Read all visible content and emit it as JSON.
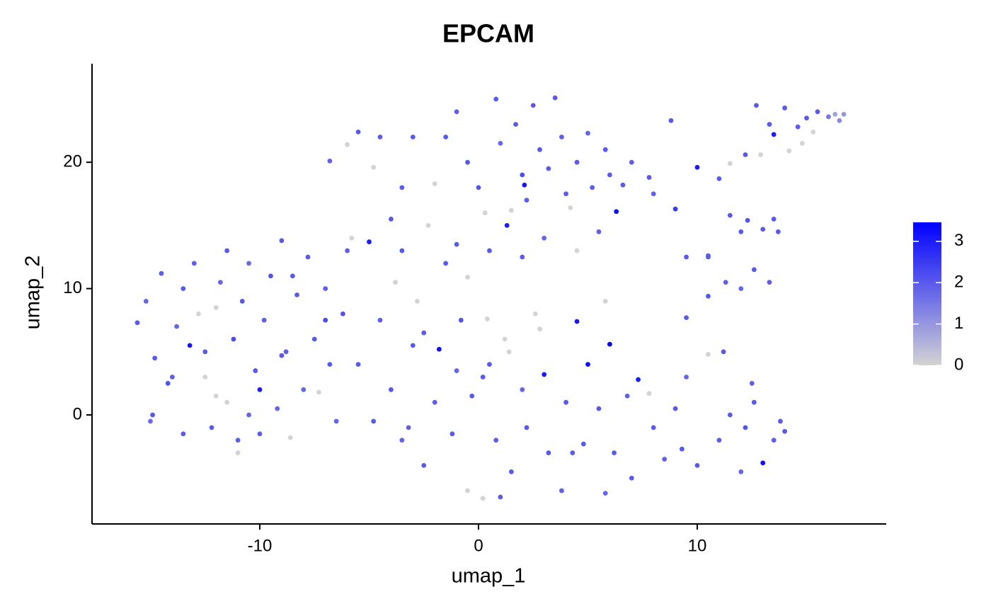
{
  "chart_data": {
    "type": "scatter",
    "title": "EPCAM",
    "xlabel": "umap_1",
    "ylabel": "umap_2",
    "xlim": [
      -17.67,
      18.64
    ],
    "ylim": [
      -8.63,
      27.8
    ],
    "xticks": [
      -10,
      0,
      10
    ],
    "yticks": [
      0,
      10,
      20
    ],
    "x": [
      -15.6,
      -15.2,
      -14.8,
      -14.5,
      -14.9,
      -15,
      -14.2,
      -13.8,
      -13.5,
      -13.2,
      -13,
      -12.8,
      -12.5,
      -12.2,
      -12,
      -11.8,
      -11.5,
      -11.2,
      -11,
      -10.8,
      -10.5,
      -10.2,
      -10,
      -9.8,
      -9.5,
      -9.2,
      -9,
      -8.8,
      -8.6,
      -8.3,
      -8,
      -7.8,
      -7.5,
      -7.3,
      -7,
      -6.8,
      -6.5,
      -6.2,
      -6,
      -11,
      -12,
      -13.5,
      -14,
      -10.5,
      -9,
      -8.5,
      -11.5,
      -12.5,
      -10,
      -7,
      -5.5,
      -5,
      -4.8,
      -4.5,
      -4,
      -3.8,
      -3.5,
      -3,
      -2.8,
      -2.5,
      -2,
      -1.8,
      -1.5,
      -1.2,
      -1,
      -0.8,
      -0.5,
      -0.3,
      0.2,
      0.5,
      0.8,
      1.2,
      1.5,
      2,
      2.2,
      2.6,
      3,
      3.2,
      3.8,
      4,
      4.5,
      4.8,
      5,
      5.5,
      5.8,
      6,
      6.2,
      6.8,
      7,
      7.3,
      7.8,
      8,
      8.5,
      9,
      9.5,
      10,
      10.5,
      11,
      11.5,
      12,
      12.2,
      12.6,
      13,
      13.5,
      13.8,
      14,
      12.5,
      11.2,
      -0.5,
      0.4,
      1.4,
      2.8,
      5.8,
      0.2,
      -2.5,
      -3.2,
      1,
      4.3,
      9.3,
      -1.5,
      -1,
      -0.5,
      0,
      0.3,
      0.8,
      1,
      1.3,
      1.7,
      2,
      2.2,
      2.5,
      2.8,
      3,
      3.2,
      3.5,
      3.8,
      4,
      4.2,
      4.5,
      5,
      5.2,
      5.5,
      5.8,
      6,
      6.3,
      6.6,
      7,
      -2,
      -2.3,
      -1,
      0.5,
      2,
      4.5,
      2.1,
      1.5,
      -6,
      -5.5,
      -4.8,
      -4.5,
      -3.5,
      -3,
      -6.8,
      -3.5,
      -4,
      -5.8,
      8.8,
      9,
      9.5,
      10,
      10.5,
      11,
      11.3,
      11.5,
      12,
      12,
      12.3,
      12.6,
      13,
      13.3,
      13.5,
      13.7,
      11.5,
      10.5,
      12.2,
      12.7,
      12.9,
      13.3,
      13.5,
      14,
      14.2,
      14.6,
      14.8,
      15,
      15.5,
      15.3,
      16,
      16.3,
      16.7,
      16.5,
      10.5,
      9.5,
      7.8,
      8
    ],
    "y": [
      7.3,
      9,
      4.5,
      11.2,
      0,
      -0.5,
      2.5,
      7,
      10,
      5.5,
      12,
      8,
      3,
      -1,
      1.5,
      10.5,
      13,
      6,
      -2,
      9,
      12,
      3.5,
      2,
      7.5,
      11,
      0.5,
      13.8,
      5,
      -1.8,
      9.5,
      2,
      12.5,
      6,
      1.8,
      10,
      4,
      -0.5,
      8,
      13,
      -3,
      8.5,
      -1.5,
      3,
      0,
      4.7,
      11,
      1,
      5,
      -1.5,
      7.5,
      4,
      13.7,
      -0.5,
      7.5,
      2,
      10.5,
      -2,
      5.5,
      9,
      -4,
      1,
      5.2,
      12,
      -1.5,
      3.5,
      7.5,
      -6,
      1.5,
      -6.6,
      4,
      -2,
      6,
      -4.5,
      2,
      -1,
      8,
      3.2,
      -3,
      -6,
      1,
      7.4,
      -2.3,
      4,
      0.5,
      -6.2,
      5.6,
      -3,
      1.5,
      -5,
      2.8,
      1.7,
      -1,
      -3.5,
      0.5,
      3,
      -4,
      4.8,
      -2,
      0,
      -4.5,
      -1,
      1,
      -3.8,
      -2,
      -0.5,
      -1.3,
      2.5,
      5,
      10.9,
      7.6,
      5,
      6.8,
      9,
      3,
      6.5,
      -1,
      -6.5,
      -3,
      -2.7,
      22,
      24,
      20,
      18,
      16,
      25,
      21.5,
      15,
      23,
      19,
      17,
      24.5,
      21,
      14,
      19.5,
      25.1,
      22,
      17.5,
      16.4,
      20,
      22.3,
      18,
      14.5,
      21,
      19,
      16.1,
      18.2,
      20,
      18.3,
      15,
      13.5,
      13,
      12.5,
      13,
      18.2,
      16.2,
      21.4,
      22.4,
      19.6,
      22,
      18,
      22,
      20.1,
      13,
      15.5,
      14,
      23.3,
      16.3,
      12.5,
      19.6,
      12.5,
      18.7,
      10.5,
      15.8,
      14.5,
      10,
      15.4,
      11.5,
      14.7,
      10.5,
      15.5,
      14.5,
      19.9,
      9.4,
      20.6,
      24.5,
      20.6,
      23,
      22.2,
      24.3,
      20.9,
      22.8,
      21.5,
      23.5,
      24,
      22.4,
      23.6,
      23.8,
      23.8,
      23.3,
      12.6,
      7.7,
      18.8,
      17.5
    ],
    "values": [
      2,
      1.8,
      2,
      1.9,
      2,
      1.7,
      2.1,
      1.8,
      2,
      3.1,
      1.9,
      0,
      0,
      2,
      0,
      1.8,
      2,
      2.2,
      1.9,
      2,
      1.7,
      2,
      3,
      1.9,
      2.1,
      1.8,
      2,
      1.9,
      0,
      2,
      1.8,
      2,
      2,
      0,
      1.9,
      2,
      1.8,
      2.1,
      1.9,
      0,
      0,
      2,
      1.9,
      1.8,
      2,
      2,
      0,
      2,
      1.9,
      2.2,
      2,
      3,
      2,
      1.9,
      2,
      0,
      1.8,
      2,
      0,
      2,
      1.9,
      3.2,
      2,
      2,
      1.8,
      2.1,
      0,
      2,
      0,
      2,
      1.9,
      0,
      2,
      1.8,
      2,
      0,
      3,
      2,
      1.9,
      2,
      3.1,
      2,
      3.2,
      2,
      1.8,
      3.4,
      2,
      1.9,
      2,
      3,
      0,
      2,
      1.9,
      2,
      1.8,
      2,
      0,
      1.9,
      2,
      1.8,
      2.1,
      2,
      3.2,
      1.9,
      2,
      2,
      1.9,
      2,
      0,
      0,
      0,
      0,
      0,
      2,
      2,
      1.9,
      2,
      2,
      2,
      2,
      1.9,
      2,
      2.1,
      0,
      2,
      1.8,
      3,
      2,
      2.2,
      1.9,
      2,
      2,
      1.8,
      2,
      2,
      1.9,
      2,
      0,
      2,
      1.8,
      2,
      1.9,
      2,
      2,
      3.3,
      2,
      1.9,
      0,
      0,
      2,
      2,
      2,
      0,
      3.1,
      0,
      0,
      2,
      0,
      2,
      2,
      2,
      1.9,
      2,
      2,
      0,
      2,
      2.5,
      2,
      3,
      2,
      2,
      1.9,
      2,
      2,
      1.8,
      2.1,
      2,
      2,
      1.9,
      2,
      2,
      0,
      2,
      2,
      2,
      0,
      2,
      3,
      2,
      0,
      1.9,
      0,
      2,
      2,
      0,
      1.5,
      0.8,
      1,
      1.2,
      2,
      2,
      2,
      1.9
    ],
    "colorbar": {
      "lim": [
        0,
        3.46
      ],
      "ticks": [
        0,
        1,
        2,
        3
      ],
      "colors": [
        "#d3d3d3",
        "#0000ff"
      ]
    }
  }
}
